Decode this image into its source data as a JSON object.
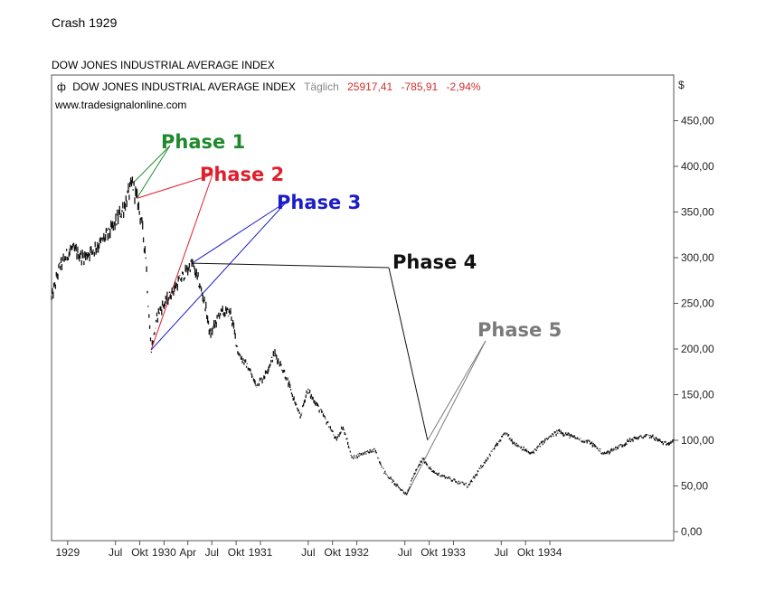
{
  "page": {
    "title": "Crash 1929"
  },
  "chart_data": {
    "type": "line",
    "title": "DOW JONES INDUSTRIAL AVERAGE INDEX",
    "legend": {
      "symbol": "ф",
      "name": "DOW JONES INDUSTRIAL AVERAGE INDEX",
      "interval": "Täglich",
      "last": "25917,41",
      "change": "-785,91",
      "change_pct": "-2,94%"
    },
    "source": "www.tradesignalonline.com",
    "currency": "$",
    "ylim": [
      0,
      480
    ],
    "yticks": [
      {
        "value": 0,
        "label": "0,00"
      },
      {
        "value": 50,
        "label": "50,00"
      },
      {
        "value": 100,
        "label": "100,00"
      },
      {
        "value": 150,
        "label": "150,00"
      },
      {
        "value": 200,
        "label": "200,00"
      },
      {
        "value": 250,
        "label": "250,00"
      },
      {
        "value": 300,
        "label": "300,00"
      },
      {
        "value": 350,
        "label": "350,00"
      },
      {
        "value": 400,
        "label": "400,00"
      },
      {
        "value": 450,
        "label": "450,00"
      }
    ],
    "xlim": [
      "1928-11-01",
      "1935-04-15"
    ],
    "xticks": [
      {
        "date": "1929-01-01",
        "label": "1929"
      },
      {
        "date": "1929-07-01",
        "label": "Jul"
      },
      {
        "date": "1929-10-01",
        "label": "Okt"
      },
      {
        "date": "1930-01-01",
        "label": "1930"
      },
      {
        "date": "1930-04-01",
        "label": "Apr"
      },
      {
        "date": "1930-07-01",
        "label": "Jul"
      },
      {
        "date": "1930-10-01",
        "label": "Okt"
      },
      {
        "date": "1931-01-01",
        "label": "1931"
      },
      {
        "date": "1931-07-01",
        "label": "Jul"
      },
      {
        "date": "1931-10-01",
        "label": "Okt"
      },
      {
        "date": "1932-01-01",
        "label": "1932"
      },
      {
        "date": "1932-07-01",
        "label": "Jul"
      },
      {
        "date": "1932-10-01",
        "label": "Okt"
      },
      {
        "date": "1933-01-01",
        "label": "1933"
      },
      {
        "date": "1933-07-01",
        "label": "Jul"
      },
      {
        "date": "1933-10-01",
        "label": "Okt"
      },
      {
        "date": "1934-01-01",
        "label": "1934"
      }
    ],
    "grid": false,
    "series": [
      {
        "points": [
          [
            "1928-11-01",
            255
          ],
          [
            "1928-12-01",
            290
          ],
          [
            "1929-01-15",
            310
          ],
          [
            "1929-03-01",
            300
          ],
          [
            "1929-05-01",
            315
          ],
          [
            "1929-06-15",
            330
          ],
          [
            "1929-08-01",
            355
          ],
          [
            "1929-09-03",
            381
          ],
          [
            "1929-09-20",
            365
          ],
          [
            "1929-10-05",
            345
          ],
          [
            "1929-10-25",
            300
          ],
          [
            "1929-10-31",
            260
          ],
          [
            "1929-11-13",
            199
          ],
          [
            "1929-12-10",
            240
          ],
          [
            "1930-01-15",
            255
          ],
          [
            "1930-03-01",
            275
          ],
          [
            "1930-04-17",
            294
          ],
          [
            "1930-05-10",
            275
          ],
          [
            "1930-06-05",
            250
          ],
          [
            "1930-06-25",
            215
          ],
          [
            "1930-08-01",
            240
          ],
          [
            "1930-09-10",
            240
          ],
          [
            "1930-10-10",
            195
          ],
          [
            "1930-11-15",
            180
          ],
          [
            "1930-12-16",
            160
          ],
          [
            "1931-01-15",
            170
          ],
          [
            "1931-02-24",
            195
          ],
          [
            "1931-04-01",
            175
          ],
          [
            "1931-06-01",
            125
          ],
          [
            "1931-06-27",
            155
          ],
          [
            "1931-08-01",
            140
          ],
          [
            "1931-09-20",
            115
          ],
          [
            "1931-10-15",
            100
          ],
          [
            "1931-11-09",
            115
          ],
          [
            "1931-12-15",
            80
          ],
          [
            "1932-01-15",
            85
          ],
          [
            "1932-03-10",
            89
          ],
          [
            "1932-04-15",
            65
          ],
          [
            "1932-06-01",
            50
          ],
          [
            "1932-07-08",
            41
          ],
          [
            "1932-08-01",
            60
          ],
          [
            "1932-09-07",
            80
          ],
          [
            "1932-10-15",
            65
          ],
          [
            "1932-12-01",
            60
          ],
          [
            "1933-02-27",
            50
          ],
          [
            "1933-04-15",
            70
          ],
          [
            "1933-06-01",
            90
          ],
          [
            "1933-07-18",
            108
          ],
          [
            "1933-08-15",
            98
          ],
          [
            "1933-10-21",
            85
          ],
          [
            "1933-12-15",
            100
          ],
          [
            "1934-02-05",
            110
          ],
          [
            "1934-04-01",
            103
          ],
          [
            "1934-06-01",
            98
          ],
          [
            "1934-07-26",
            85
          ],
          [
            "1934-09-15",
            92
          ],
          [
            "1934-11-15",
            102
          ],
          [
            "1935-01-15",
            105
          ],
          [
            "1935-03-14",
            96
          ],
          [
            "1935-04-15",
            100
          ]
        ]
      }
    ],
    "annotations": [
      {
        "label": "Phase 1",
        "color": "#1f8a2c",
        "targets": [
          [
            "1929-09-03",
            381
          ],
          [
            "1929-09-20",
            365
          ]
        ]
      },
      {
        "label": "Phase 2",
        "color": "#e01f2d",
        "targets": [
          [
            "1929-09-20",
            365
          ],
          [
            "1929-11-13",
            199
          ]
        ]
      },
      {
        "label": "Phase 3",
        "color": "#1c1cc8",
        "targets": [
          [
            "1929-11-13",
            199
          ],
          [
            "1930-04-17",
            294
          ]
        ]
      },
      {
        "label": "Phase 4",
        "color": "#111111",
        "targets": [
          [
            "1930-04-17",
            294
          ],
          [
            "1932-09-25",
            100
          ]
        ]
      },
      {
        "label": "Phase 5",
        "color": "#7a7a7a",
        "targets": [
          [
            "1932-09-25",
            100
          ],
          [
            "1932-07-08",
            41
          ]
        ]
      }
    ]
  }
}
